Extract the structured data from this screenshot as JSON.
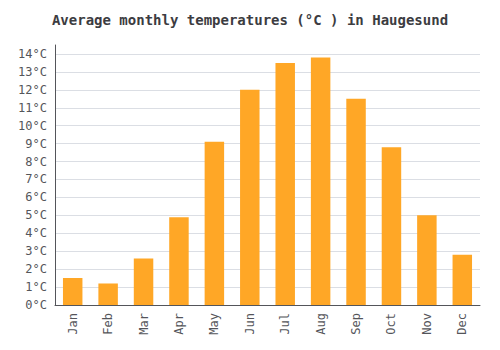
{
  "chart_data": {
    "type": "bar",
    "title": "Average monthly temperatures (°C ) in Haugesund",
    "categories": [
      "Jan",
      "Feb",
      "Mar",
      "Apr",
      "May",
      "Jun",
      "Jul",
      "Aug",
      "Sep",
      "Oct",
      "Nov",
      "Dec"
    ],
    "values": [
      1.5,
      1.2,
      2.6,
      4.9,
      9.1,
      12.0,
      13.5,
      13.8,
      11.5,
      8.8,
      5.0,
      2.8
    ],
    "color": "#FFA726",
    "ylim": [
      0,
      14.5
    ],
    "yticks": [
      {
        "value": 0,
        "label": "0°C"
      },
      {
        "value": 1,
        "label": "1°C"
      },
      {
        "value": 2,
        "label": "2°C"
      },
      {
        "value": 3,
        "label": "3°C"
      },
      {
        "value": 4,
        "label": "4°C"
      },
      {
        "value": 5,
        "label": "5°C"
      },
      {
        "value": 6,
        "label": "6°C"
      },
      {
        "value": 7,
        "label": "7°C"
      },
      {
        "value": 8,
        "label": "8°C"
      },
      {
        "value": 9,
        "label": "9°C"
      },
      {
        "value": 10,
        "label": "10°C"
      },
      {
        "value": 11,
        "label": "11°C"
      },
      {
        "value": 12,
        "label": "12°C"
      },
      {
        "value": 13,
        "label": "13°C"
      },
      {
        "value": 14,
        "label": "14°C"
      }
    ],
    "grid": true
  }
}
